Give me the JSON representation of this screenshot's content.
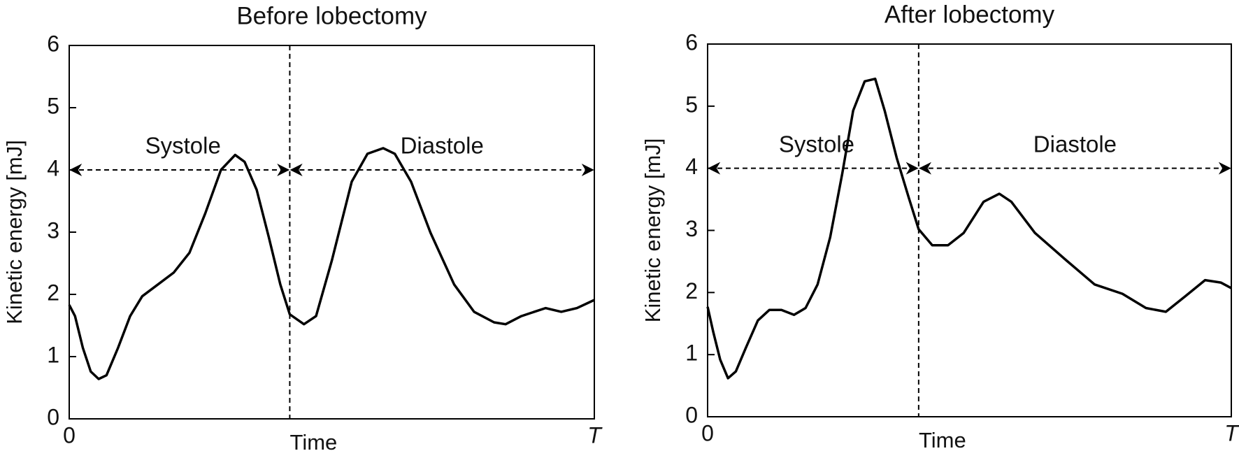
{
  "chart_data": [
    {
      "type": "line",
      "title": "Before lobectomy",
      "x_label": "Time",
      "y_label": "Kinetic energy [mJ]",
      "xlim": [
        0,
        1
      ],
      "xticks": [
        0,
        {
          "value": 1,
          "label": "T"
        }
      ],
      "ylim": [
        0,
        6
      ],
      "yticks": [
        0,
        1,
        2,
        3,
        4,
        5,
        6
      ],
      "phase_boundary": 0.42,
      "phase_arrow_y": 4,
      "phases": [
        "Systole",
        "Diastole"
      ],
      "x": [
        0,
        0.011,
        0.026,
        0.041,
        0.056,
        0.071,
        0.093,
        0.116,
        0.139,
        0.169,
        0.199,
        0.229,
        0.259,
        0.289,
        0.316,
        0.334,
        0.357,
        0.38,
        0.402,
        0.42,
        0.447,
        0.47,
        0.5,
        0.538,
        0.568,
        0.598,
        0.62,
        0.651,
        0.688,
        0.733,
        0.771,
        0.809,
        0.831,
        0.861,
        0.907,
        0.937,
        0.967,
        1
      ],
      "series": [
        {
          "color": "#000000",
          "values": [
            1.83,
            1.65,
            1.14,
            0.76,
            0.64,
            0.7,
            1.14,
            1.65,
            1.97,
            2.16,
            2.35,
            2.67,
            3.3,
            4.0,
            4.24,
            4.13,
            3.68,
            2.92,
            2.16,
            1.68,
            1.52,
            1.65,
            2.54,
            3.81,
            4.26,
            4.35,
            4.26,
            3.81,
            2.99,
            2.16,
            1.72,
            1.55,
            1.52,
            1.65,
            1.78,
            1.72,
            1.78,
            1.91
          ]
        }
      ]
    },
    {
      "type": "line",
      "title": "After lobectomy",
      "x_label": "Time",
      "y_label": "Kinetic energy [mJ]",
      "xlim": [
        0,
        1
      ],
      "xticks": [
        0,
        {
          "value": 1,
          "label": "T"
        }
      ],
      "ylim": [
        0,
        6
      ],
      "yticks": [
        0,
        1,
        2,
        3,
        4,
        5,
        6
      ],
      "phase_boundary": 0.403,
      "phase_arrow_y": 4,
      "phases": [
        "Systole",
        "Diastole"
      ],
      "x": [
        0,
        0.011,
        0.024,
        0.039,
        0.054,
        0.073,
        0.096,
        0.118,
        0.141,
        0.165,
        0.187,
        0.21,
        0.234,
        0.257,
        0.278,
        0.3,
        0.32,
        0.338,
        0.361,
        0.384,
        0.403,
        0.429,
        0.459,
        0.489,
        0.527,
        0.557,
        0.58,
        0.625,
        0.686,
        0.739,
        0.792,
        0.837,
        0.875,
        0.912,
        0.95,
        0.98,
        1
      ],
      "series": [
        {
          "color": "#000000",
          "values": [
            1.77,
            1.36,
            0.92,
            0.62,
            0.73,
            1.11,
            1.55,
            1.72,
            1.72,
            1.64,
            1.75,
            2.13,
            2.89,
            3.91,
            4.93,
            5.4,
            5.44,
            4.93,
            4.17,
            3.53,
            3.02,
            2.76,
            2.76,
            2.96,
            3.46,
            3.59,
            3.46,
            2.96,
            2.51,
            2.13,
            1.98,
            1.75,
            1.69,
            1.94,
            2.2,
            2.16,
            2.07
          ]
        }
      ]
    }
  ]
}
